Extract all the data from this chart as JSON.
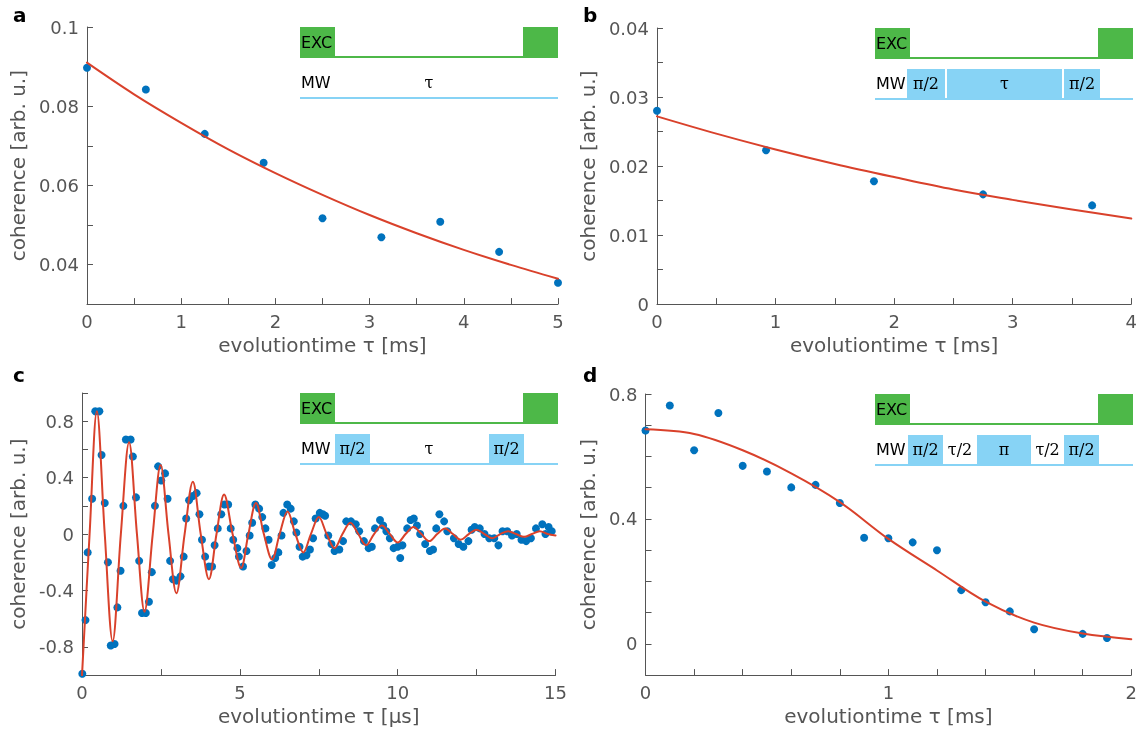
{
  "chart_data": [
    {
      "type": "scatter",
      "title": "a",
      "xlabel": "evolutiontime τ [ms]",
      "ylabel": "coherence [arb. u.]",
      "annotations": [
        "EXC",
        "MW",
        "τ"
      ],
      "marker": "circle",
      "xlim": [
        0,
        5
      ],
      "xticks": [
        0,
        {
          "value": 0.5,
          "label": null
        },
        1,
        {
          "value": 1.5,
          "label": null
        },
        2,
        {
          "value": 2.5,
          "label": null
        },
        3,
        {
          "value": 3.5,
          "label": null
        },
        4,
        {
          "value": 4.5,
          "label": null
        },
        5
      ],
      "ylim": [
        0.03,
        0.1
      ],
      "yticks": [
        0.04,
        {
          "value": 0.05,
          "label": null
        },
        0.06,
        {
          "value": 0.07,
          "label": null
        },
        0.08,
        0.1
      ],
      "series": [
        {
          "type": "scatter",
          "color": "#0072bd",
          "x": [
            0,
            0.625,
            1.25,
            1.875,
            2.5,
            3.125,
            3.75,
            4.375,
            5
          ],
          "values": [
            0.0897,
            0.0842,
            0.073,
            0.0657,
            0.0517,
            0.0469,
            0.0508,
            0.0432,
            0.0354
          ]
        },
        {
          "type": "line",
          "color": "#d9412b",
          "marker": "none",
          "line_style": "solid",
          "x": [
            0,
            0.5,
            1,
            1.5,
            2,
            2.5,
            3,
            3.5,
            4,
            4.5,
            5
          ],
          "values": [
            0.091,
            0.083,
            0.0758,
            0.0691,
            0.0631,
            0.0576,
            0.0525,
            0.0479,
            0.0437,
            0.0399,
            0.0364
          ]
        }
      ]
    },
    {
      "type": "scatter",
      "title": "b",
      "xlabel": "evolutiontime τ [ms]",
      "ylabel": "coherence [arb. u.]",
      "annotations": [
        "EXC",
        "MW",
        "π/2",
        "τ",
        "π/2"
      ],
      "marker": "circle",
      "xlim": [
        0,
        4
      ],
      "xticks": [
        0,
        {
          "value": 0.5,
          "label": null
        },
        1,
        {
          "value": 1.5,
          "label": null
        },
        2,
        {
          "value": 2.5,
          "label": null
        },
        3,
        {
          "value": 3.5,
          "label": null
        },
        4
      ],
      "ylim": [
        0,
        0.04
      ],
      "yticks": [
        0,
        {
          "value": 0.005,
          "label": null
        },
        0.01,
        {
          "value": 0.015,
          "label": null
        },
        0.02,
        {
          "value": 0.025,
          "label": null
        },
        0.03,
        {
          "value": 0.035,
          "label": null
        },
        0.04
      ],
      "series": [
        {
          "type": "scatter",
          "color": "#0072bd",
          "x": [
            0,
            0.92,
            1.83,
            2.75,
            3.67
          ],
          "values": [
            0.028,
            0.0223,
            0.0178,
            0.0159,
            0.0143
          ]
        },
        {
          "type": "line",
          "color": "#d9412b",
          "marker": "none",
          "line_style": "solid",
          "x": [
            0,
            0.5,
            1,
            1.5,
            2,
            2.5,
            3,
            3.5,
            4
          ],
          "values": [
            0.0272,
            0.0247,
            0.0224,
            0.0203,
            0.0184,
            0.0166,
            0.0151,
            0.0137,
            0.0124
          ]
        }
      ]
    },
    {
      "type": "scatter",
      "title": "c",
      "xlabel": "evolutiontime τ [μs]",
      "ylabel": "coherence [arb. u.]",
      "annotations": [
        "EXC",
        "MW",
        "π/2",
        "τ",
        "π/2"
      ],
      "marker": "circle",
      "xlim": [
        0,
        15
      ],
      "xticks": [
        0,
        {
          "value": 2.5,
          "label": null
        },
        5,
        {
          "value": 7.5,
          "label": null
        },
        10,
        {
          "value": 12.5,
          "label": null
        },
        15
      ],
      "ylim": [
        -1,
        1
      ],
      "yticks": [
        {
          "value": -1,
          "label": null
        },
        -0.8,
        {
          "value": -0.6,
          "label": null
        },
        -0.4,
        {
          "value": -0.2,
          "label": null
        },
        0,
        {
          "value": 0.2,
          "label": null
        },
        0.4,
        {
          "value": 0.6,
          "label": null
        },
        0.8,
        {
          "value": 1,
          "label": null
        }
      ],
      "series": [
        {
          "type": "scatter",
          "color": "#0072bd",
          "x": [
            0.01,
            0.11,
            0.18,
            0.32,
            0.42,
            0.55,
            0.62,
            0.72,
            0.82,
            0.91,
            1.03,
            1.12,
            1.22,
            1.31,
            1.39,
            1.54,
            1.61,
            1.71,
            1.81,
            1.9,
            2.02,
            2.12,
            2.21,
            2.31,
            2.41,
            2.51,
            2.63,
            2.71,
            2.79,
            2.88,
            2.99,
            3.12,
            3.22,
            3.3,
            3.39,
            3.51,
            3.63,
            3.72,
            3.8,
            3.9,
            4.02,
            4.12,
            4.2,
            4.3,
            4.41,
            4.51,
            4.63,
            4.71,
            4.79,
            4.92,
            4.97,
            5.1,
            5.21,
            5.31,
            5.39,
            5.49,
            5.61,
            5.71,
            5.81,
            5.91,
            6.01,
            6.12,
            6.22,
            6.32,
            6.38,
            6.5,
            6.61,
            6.71,
            6.79,
            6.89,
            6.99,
            7.11,
            7.22,
            7.32,
            7.4,
            7.53,
            7.63,
            7.7,
            7.8,
            7.9,
            8.0,
            8.15,
            8.27,
            8.37,
            8.52,
            8.67,
            8.78,
            8.93,
            9.08,
            9.18,
            9.28,
            9.44,
            9.54,
            9.64,
            9.75,
            9.87,
            10.0,
            10.08,
            10.15,
            10.3,
            10.41,
            10.51,
            10.61,
            10.71,
            10.87,
            11.02,
            11.12,
            11.22,
            11.32,
            11.47,
            11.57,
            11.78,
            11.93,
            12.08,
            12.24,
            12.34,
            12.44,
            12.6,
            12.75,
            12.9,
            13.06,
            13.19,
            13.32,
            13.47,
            13.62,
            13.77,
            13.92,
            14.07,
            14.22,
            14.38,
            14.58,
            14.68,
            14.78,
            14.88
          ],
          "values": [
            -0.99,
            -0.61,
            -0.13,
            0.25,
            0.87,
            0.87,
            0.56,
            0.22,
            -0.2,
            -0.79,
            -0.78,
            -0.52,
            -0.26,
            0.2,
            0.67,
            0.67,
            0.55,
            0.26,
            -0.19,
            -0.56,
            -0.56,
            -0.48,
            -0.27,
            0.2,
            0.48,
            0.38,
            0.43,
            0.25,
            -0.19,
            -0.32,
            -0.33,
            -0.3,
            -0.16,
            0.11,
            0.24,
            0.27,
            0.29,
            0.14,
            -0.04,
            -0.16,
            -0.23,
            -0.23,
            -0.08,
            0.04,
            0.14,
            0.21,
            0.21,
            0.04,
            -0.04,
            -0.1,
            -0.16,
            -0.23,
            -0.12,
            -0.01,
            0.08,
            0.21,
            0.18,
            0.12,
            0.04,
            -0.04,
            -0.22,
            -0.17,
            -0.13,
            -0.01,
            0.15,
            0.21,
            0.18,
            0.09,
            0.01,
            -0.09,
            -0.16,
            -0.15,
            -0.11,
            -0.03,
            0.11,
            0.15,
            0.14,
            0.13,
            -0.01,
            -0.07,
            -0.12,
            -0.11,
            -0.05,
            0.09,
            0.09,
            0.07,
            0.02,
            -0.05,
            -0.1,
            -0.09,
            0.04,
            0.1,
            0.06,
            0.02,
            -0.03,
            -0.1,
            -0.09,
            -0.17,
            -0.08,
            0.04,
            0.1,
            0.11,
            0.06,
            0.0,
            -0.07,
            -0.12,
            -0.11,
            0.04,
            0.14,
            0.09,
            0.02,
            -0.03,
            -0.07,
            -0.09,
            -0.05,
            0.03,
            0.05,
            0.04,
            0.0,
            -0.03,
            -0.03,
            -0.08,
            0.02,
            0.02,
            -0.01,
            0.0,
            -0.04,
            -0.05,
            -0.03,
            0.04,
            0.07,
            0.0,
            0.05,
            0.02
          ]
        },
        {
          "type": "line",
          "color": "#d9412b",
          "marker": "none",
          "line_style": "solid",
          "x": [
            0,
            0.24,
            0.47,
            0.72,
            0.97,
            1.23,
            1.49,
            1.74,
            1.98,
            2.24,
            2.49,
            2.74,
            2.99,
            3.25,
            3.51,
            3.76,
            4.02,
            4.26,
            4.5,
            4.77,
            5.04,
            5.27,
            5.51,
            5.76,
            6.02,
            6.26,
            6.51,
            6.76,
            7.01,
            7.25,
            7.5,
            7.75,
            8.0,
            8.25,
            8.5,
            8.75,
            9.0,
            9.25,
            9.5,
            9.75,
            10.0,
            10.25,
            10.5,
            10.75,
            11.0,
            11.25,
            11.5,
            11.75,
            12.0,
            12.25,
            12.5,
            12.75,
            13.0,
            13.25,
            13.5,
            13.75,
            14.0,
            14.25,
            14.5,
            14.75,
            15.0
          ],
          "values": [
            -1,
            0,
            0.87,
            0,
            -0.76,
            0,
            0.65,
            0,
            -0.55,
            0,
            0.49,
            0,
            -0.42,
            0,
            0.37,
            0,
            -0.32,
            0,
            0.28,
            0,
            -0.24,
            0,
            0.22,
            0,
            -0.18,
            0,
            0.16,
            0,
            -0.13,
            0,
            0.12,
            0,
            -0.1,
            0,
            0.08,
            0,
            -0.08,
            0,
            0.06,
            0,
            -0.06,
            0,
            0.05,
            0,
            -0.05,
            0,
            0.04,
            0,
            -0.04,
            0,
            0.03,
            0,
            -0.03,
            0,
            0.02,
            0,
            -0.02,
            0,
            0.02,
            0,
            -0.01
          ]
        }
      ]
    },
    {
      "type": "scatter",
      "title": "d",
      "xlabel": "evolutiontime τ [ms]",
      "ylabel": "coherence [arb. u.]",
      "annotations": [
        "EXC",
        "MW",
        "π/2",
        "τ/2",
        "π",
        "τ/2",
        "π/2"
      ],
      "marker": "circle",
      "xlim": [
        0,
        2
      ],
      "xticks": [
        0,
        {
          "value": 0.2,
          "label": null
        },
        {
          "value": 0.4,
          "label": null
        },
        {
          "value": 0.6,
          "label": null
        },
        {
          "value": 0.8,
          "label": null
        },
        1,
        {
          "value": 1.2,
          "label": null
        },
        {
          "value": 1.4,
          "label": null
        },
        {
          "value": 1.6,
          "label": null
        },
        {
          "value": 1.8,
          "label": null
        },
        2
      ],
      "ylim": [
        -0.1,
        0.8
      ],
      "yticks": [
        0,
        {
          "value": 0.1,
          "label": null
        },
        {
          "value": 0.2,
          "label": null
        },
        {
          "value": 0.3,
          "label": null
        },
        0.4,
        {
          "value": 0.5,
          "label": null
        },
        {
          "value": 0.6,
          "label": null
        },
        {
          "value": 0.7,
          "label": null
        },
        0.8
      ],
      "series": [
        {
          "type": "scatter",
          "color": "#0072bd",
          "x": [
            0,
            0.1,
            0.2,
            0.3,
            0.4,
            0.5,
            0.6,
            0.7,
            0.8,
            0.9,
            1.0,
            1.1,
            1.2,
            1.3,
            1.4,
            1.5,
            1.6,
            1.8,
            1.9
          ],
          "values": [
            0.683,
            0.763,
            0.62,
            0.739,
            0.57,
            0.552,
            0.501,
            0.509,
            0.451,
            0.34,
            0.338,
            0.325,
            0.3,
            0.172,
            0.133,
            0.104,
            0.047,
            0.032,
            0.019
          ]
        },
        {
          "type": "line",
          "color": "#d9412b",
          "marker": "none",
          "line_style": "solid",
          "x": [
            0,
            0.2,
            0.4,
            0.6,
            0.8,
            1.0,
            1.2,
            1.4,
            1.6,
            1.8,
            2.0
          ],
          "values": [
            0.687,
            0.672,
            0.62,
            0.546,
            0.454,
            0.336,
            0.235,
            0.135,
            0.068,
            0.033,
            0.015
          ]
        }
      ]
    }
  ]
}
